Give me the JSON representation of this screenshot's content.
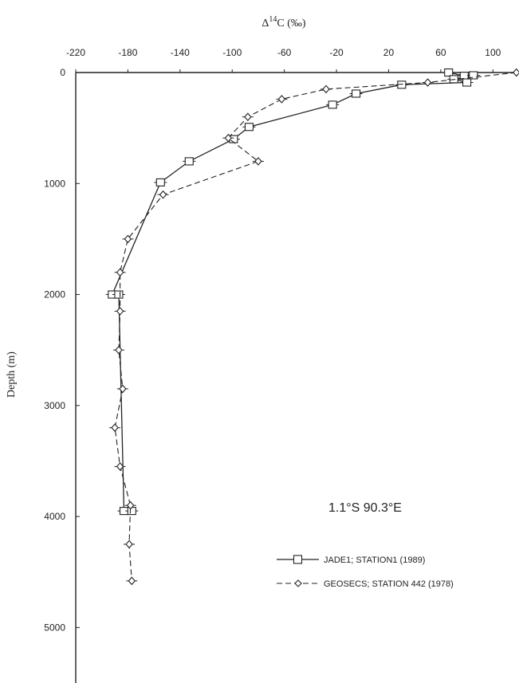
{
  "chart_data": {
    "type": "line",
    "x_title_prefix": "Δ",
    "x_title_sup": "14",
    "x_title_suffix": "C (‰)",
    "ylabel": "Depth (m)",
    "x_ticks": [
      -220,
      -180,
      -140,
      -100,
      -60,
      -20,
      20,
      60,
      100
    ],
    "y_ticks": [
      0,
      1000,
      2000,
      3000,
      4000,
      5000
    ],
    "xlim": [
      -220,
      120
    ],
    "ylim": [
      0,
      5500
    ],
    "y_inverted": true,
    "annotation": "1.1°S  90.3°E",
    "series": [
      {
        "name": "JADE1; STATION1 (1989)",
        "style": "solid",
        "marker": "square",
        "points": [
          [
            66,
            0
          ],
          [
            78,
            30
          ],
          [
            85,
            25
          ],
          [
            70,
            60
          ],
          [
            80,
            90
          ],
          [
            30,
            110
          ],
          [
            -5,
            190
          ],
          [
            -23,
            290
          ],
          [
            -87,
            490
          ],
          [
            -99,
            600
          ],
          [
            -133,
            800
          ],
          [
            -155,
            990
          ],
          [
            -192,
            2000
          ],
          [
            -187,
            2000
          ],
          [
            -183,
            3950
          ],
          [
            -177,
            3950
          ]
        ]
      },
      {
        "name": "GEOSECS; STATION 442 (1978)",
        "style": "dashed",
        "marker": "diamond",
        "points": [
          [
            118,
            0
          ],
          [
            50,
            90
          ],
          [
            -28,
            150
          ],
          [
            -62,
            240
          ],
          [
            -88,
            400
          ],
          [
            -103,
            590
          ],
          [
            -80,
            800
          ],
          [
            -153,
            1100
          ],
          [
            -180,
            1500
          ],
          [
            -186,
            1800
          ],
          [
            -186,
            2150
          ],
          [
            -187,
            2500
          ],
          [
            -184,
            2850
          ],
          [
            -190,
            3200
          ],
          [
            -186,
            3550
          ],
          [
            -178,
            3900
          ],
          [
            -179,
            4250
          ],
          [
            -177,
            4580
          ]
        ]
      }
    ]
  }
}
